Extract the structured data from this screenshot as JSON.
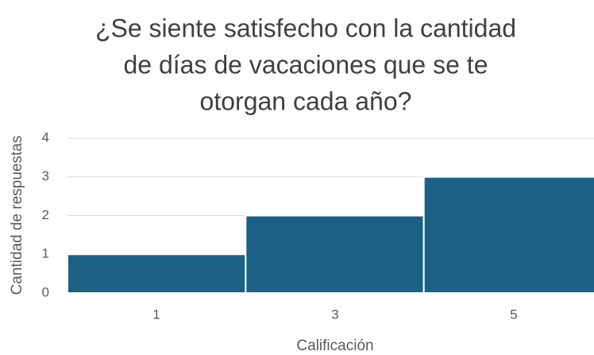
{
  "chart_data": {
    "type": "bar",
    "title": [
      "¿Se siente satisfecho con la cantidad",
      "de días de vacaciones que se te",
      "otorgan cada año?"
    ],
    "x_label": "Calificación",
    "y_label": "Cantidad de respuestas",
    "categories": [
      "1",
      "3",
      "5"
    ],
    "values": [
      1,
      2,
      3
    ],
    "color": "#1a6185",
    "ylim": [
      0,
      4
    ],
    "yticks": [
      0,
      1,
      2,
      3,
      4
    ],
    "grid": true
  }
}
